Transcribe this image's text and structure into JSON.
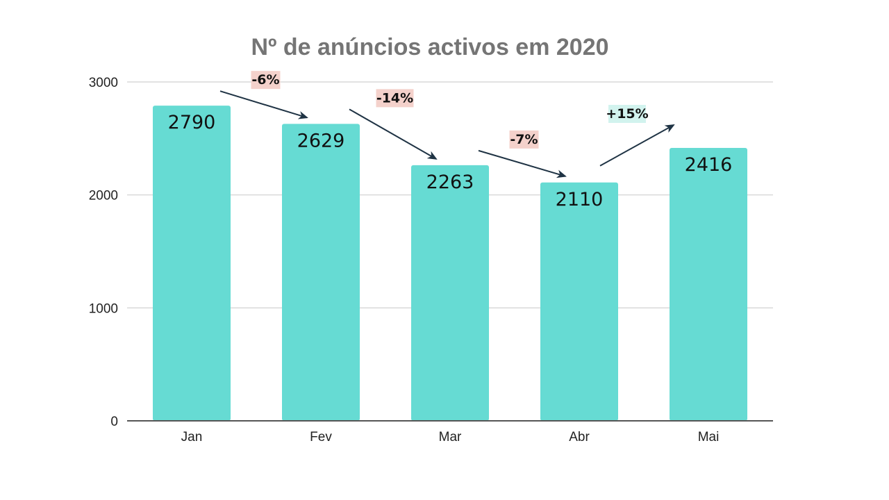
{
  "colors": {
    "bar": "#66dbd3",
    "negative_badge": "#f4d1cb",
    "positive_badge": "#d2f3ee",
    "arrow": "#1f3344"
  },
  "chart_data": {
    "type": "bar",
    "title": "Nº de anúncios activos em 2020",
    "xlabel": "",
    "ylabel": "",
    "categories": [
      "Jan",
      "Fev",
      "Mar",
      "Abr",
      "Mai"
    ],
    "values": [
      2790,
      2629,
      2263,
      2110,
      2416
    ],
    "ylim": [
      0,
      3000
    ],
    "yticks": [
      0,
      1000,
      2000,
      3000
    ],
    "grid": true,
    "legend": "none",
    "annotations": [
      {
        "from": "Jan",
        "to": "Fev",
        "text": "-6%",
        "sign": "negative"
      },
      {
        "from": "Fev",
        "to": "Mar",
        "text": "-14%",
        "sign": "negative"
      },
      {
        "from": "Mar",
        "to": "Abr",
        "text": "-7%",
        "sign": "negative"
      },
      {
        "from": "Abr",
        "to": "Mai",
        "text": "+15%",
        "sign": "positive"
      }
    ]
  }
}
